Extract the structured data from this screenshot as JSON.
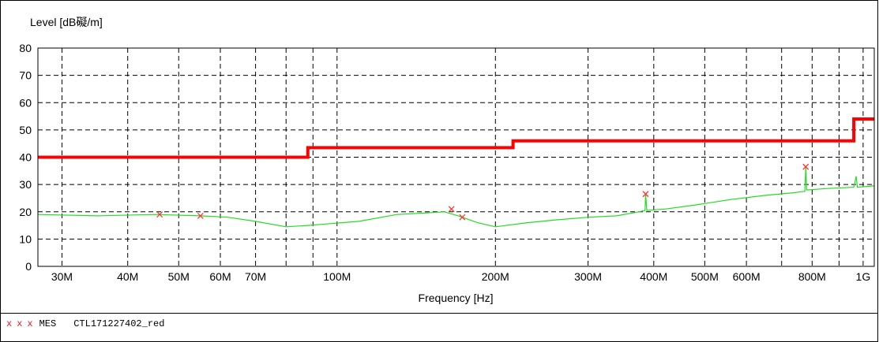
{
  "chart_data": {
    "type": "line",
    "ylabel": "Level [dB礙/m]",
    "xlabel": "Frequency [Hz]",
    "x_scale": "log",
    "xlim": [
      27000000,
      1050000000
    ],
    "ylim": [
      0,
      80
    ],
    "yticks": [
      0,
      10,
      20,
      30,
      40,
      50,
      60,
      70,
      80
    ],
    "xticks": [
      {
        "value": 30000000,
        "label": "30M"
      },
      {
        "value": 40000000,
        "label": "40M"
      },
      {
        "value": 50000000,
        "label": "50M"
      },
      {
        "value": 60000000,
        "label": "60M"
      },
      {
        "value": 70000000,
        "label": "70M"
      },
      {
        "value": 100000000,
        "label": "100M"
      },
      {
        "value": 200000000,
        "label": "200M"
      },
      {
        "value": 300000000,
        "label": "300M"
      },
      {
        "value": 400000000,
        "label": "400M"
      },
      {
        "value": 500000000,
        "label": "500M"
      },
      {
        "value": 600000000,
        "label": "600M"
      },
      {
        "value": 800000000,
        "label": "800M"
      },
      {
        "value": 1000000000,
        "label": "1G"
      }
    ],
    "minor_gridlines_x": [
      80000000,
      90000000,
      700000000,
      900000000
    ],
    "grid": true,
    "series": [
      {
        "color": "#ff0000",
        "step": true,
        "x": [
          27000000,
          88000000,
          88000000,
          216000000,
          216000000,
          960000000,
          960000000,
          1050000000
        ],
        "y": [
          40,
          40,
          43.5,
          43.5,
          46,
          46,
          54,
          54
        ]
      },
      {
        "color": "#22dd22",
        "x": [
          27000000,
          35000000,
          45000000,
          55000000,
          62000000,
          70000000,
          80000000,
          88000000,
          95000000,
          110000000,
          130000000,
          145000000,
          160000000,
          170000000,
          185000000,
          200000000,
          230000000,
          260000000,
          300000000,
          340000000,
          375000000,
          385000000,
          386000000,
          388000000,
          420000000,
          480000000,
          560000000,
          650000000,
          740000000,
          775000000,
          778000000,
          781000000,
          850000000,
          960000000,
          970000000,
          975000000,
          1050000000
        ],
        "y": [
          19,
          18.5,
          19,
          18.5,
          18,
          16.5,
          14.5,
          15,
          15.5,
          16.5,
          19,
          19.5,
          20,
          18.5,
          16,
          14.5,
          16,
          17,
          18,
          18.5,
          20,
          20.5,
          26.5,
          20.5,
          21,
          22.5,
          24.5,
          26,
          27,
          27.5,
          36.5,
          28,
          28.5,
          29,
          33,
          29,
          29.5
        ]
      }
    ],
    "markers": {
      "color": "#ff3333",
      "symbol": "x",
      "x": [
        46000000,
        55000000,
        165000000,
        173000000,
        386000000,
        778000000
      ],
      "y": [
        19,
        18.5,
        21,
        18,
        26.5,
        36.5
      ]
    }
  },
  "legend": {
    "marks": [
      "x",
      "x",
      "x"
    ],
    "series_label": "MES",
    "file_label": "CTL171227402_red"
  }
}
